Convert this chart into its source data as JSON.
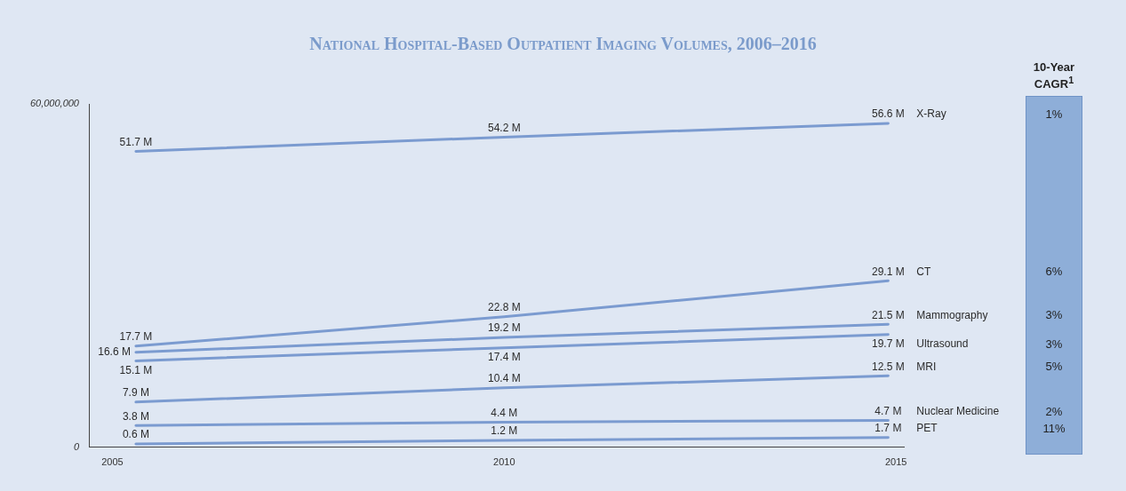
{
  "chart_data": {
    "type": "line",
    "title": "National Hospital-Based Outpatient Imaging Volumes, 2006–2016",
    "x": [
      2005.3,
      2010,
      2014.9
    ],
    "xlim": [
      2004.7,
      2015.1
    ],
    "xticks": [
      2005,
      2010,
      2015
    ],
    "ylim": [
      0,
      60000000
    ],
    "yticks": [
      0,
      {
        "value": 60000000,
        "label": "60,000,000"
      }
    ],
    "legend": false,
    "marker": "none",
    "series": [
      {
        "name": "X-Ray",
        "color": "#7b9bd0",
        "values": [
          51700000,
          54200000,
          56600000
        ],
        "value_labels": [
          "51.7 M",
          "54.2 M",
          "56.6 M"
        ]
      },
      {
        "name": "CT",
        "color": "#7b9bd0",
        "values": [
          17700000,
          22800000,
          29100000
        ],
        "value_labels": [
          "17.7 M",
          "22.8 M",
          "29.1 M"
        ]
      },
      {
        "name": "Mammography",
        "color": "#7b9bd0",
        "values": [
          16600000,
          19200000,
          21500000
        ],
        "value_labels": [
          "16.6 M",
          "19.2 M",
          "21.5 M"
        ]
      },
      {
        "name": "Ultrasound",
        "color": "#7b9bd0",
        "values": [
          15100000,
          17400000,
          19700000
        ],
        "value_labels": [
          "15.1 M",
          "17.4 M",
          "19.7 M"
        ]
      },
      {
        "name": "MRI",
        "color": "#7b9bd0",
        "values": [
          7900000,
          10400000,
          12500000
        ],
        "value_labels": [
          "7.9 M",
          "10.4 M",
          "12.5 M"
        ]
      },
      {
        "name": "Nuclear Medicine",
        "color": "#7b9bd0",
        "values": [
          3800000,
          4400000,
          4700000
        ],
        "value_labels": [
          "3.8 M",
          "4.4 M",
          "4.7 M"
        ]
      },
      {
        "name": "PET",
        "color": "#7b9bd0",
        "values": [
          600000,
          1200000,
          1700000
        ],
        "value_labels": [
          "0.6 M",
          "1.2 M",
          "1.7 M"
        ]
      }
    ],
    "annotations": [
      "10-Year CAGR$^{1}$",
      "1%",
      "6%",
      "3%",
      "3%",
      "5%",
      "2%",
      "11%"
    ]
  }
}
